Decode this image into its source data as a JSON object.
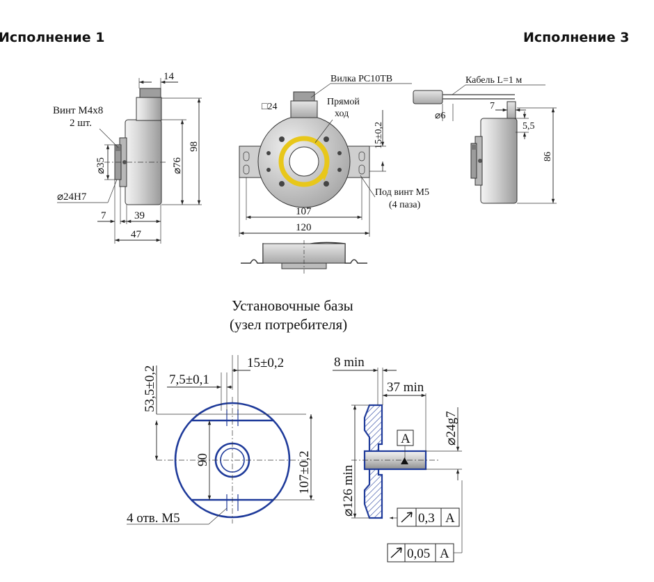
{
  "headers": {
    "variant1": "Исполнение 1",
    "variant3": "Исполнение 3"
  },
  "labels": {
    "screw": "Винт М4х8",
    "screw_qty": "2 шт.",
    "plug": "Вилка PC10TB",
    "direct": "Прямой",
    "direct2": "ход",
    "cable": "Кабель L=1 м",
    "slot": "Под винт М5",
    "slot2": "(4 паза)",
    "holes": "4 отв. М5",
    "bases_title": "Установочные базы",
    "bases_sub": "(узел потребителя)",
    "datum": "A"
  },
  "dims": {
    "d14": "14",
    "d98": "98",
    "d76": "⌀76",
    "d35": "⌀35",
    "d24h7": "⌀24H7",
    "d7a": "7",
    "d39": "39",
    "d47": "47",
    "sq24": "□24",
    "d15": "15±0,2",
    "d107": "107",
    "d120": "120",
    "d6": "⌀6",
    "d7b": "7",
    "d55": "5,5",
    "d86": "86",
    "d535": "53,5±0,2",
    "d75": "7,5±0,1",
    "d15b": "15±0,2",
    "d90": "90",
    "d107b": "107±0,2",
    "d8min": "8 min",
    "d37min": "37 min",
    "d24g7": "⌀24g7",
    "d126min": "⌀126 min"
  },
  "tolerances": {
    "t1_value": "0,3",
    "t1_datum": "A",
    "t2_value": "0,05",
    "t2_datum": "A"
  },
  "colors": {
    "outline_blue": "#1e3a9a",
    "hatch_blue": "#1e3a9a",
    "arrow_yellow": "#e8c71a",
    "body_gray": "#cfcfcf"
  }
}
